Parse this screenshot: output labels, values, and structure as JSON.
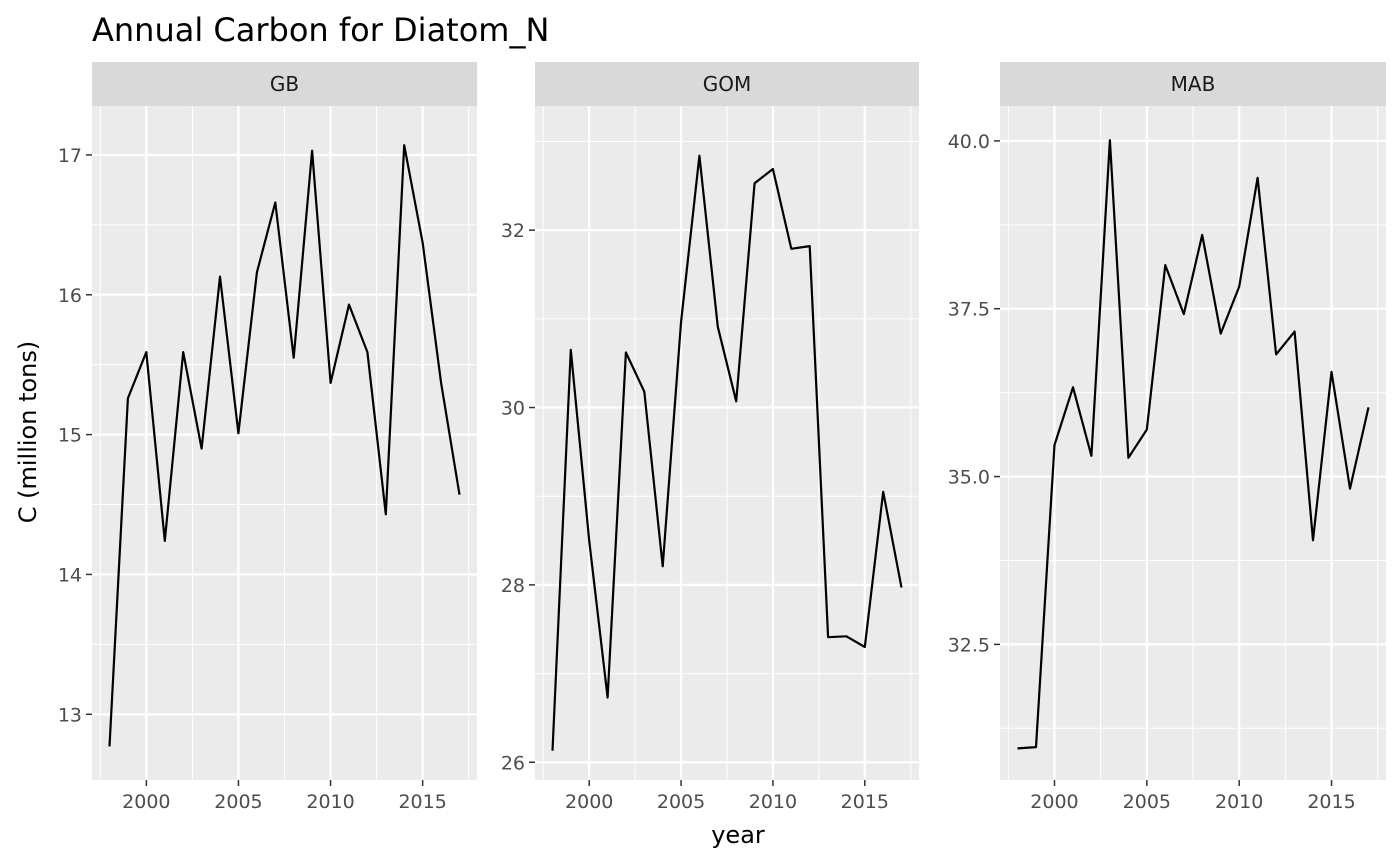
{
  "chart_data": {
    "type": "line",
    "title": "Annual Carbon for Diatom_N",
    "xlabel": "year",
    "ylabel": "C (million tons)",
    "x": [
      1998,
      1999,
      2000,
      2001,
      2002,
      2003,
      2004,
      2005,
      2006,
      2007,
      2008,
      2009,
      2010,
      2011,
      2012,
      2013,
      2014,
      2015,
      2016,
      2017
    ],
    "xticks": [
      2000,
      2005,
      2010,
      2015
    ],
    "xtick_labels": [
      "2000",
      "2005",
      "2010",
      "2015"
    ],
    "xlim": [
      1997.05,
      2017.95
    ],
    "grid": true,
    "panels": [
      {
        "name": "GB",
        "ylim": [
          12.53,
          17.35
        ],
        "yticks": [
          13,
          14,
          15,
          16,
          17
        ],
        "ytick_labels": [
          "13",
          "14",
          "15",
          "16",
          "17"
        ],
        "values": [
          12.77,
          15.26,
          15.59,
          14.24,
          15.59,
          14.9,
          16.13,
          15.01,
          16.16,
          16.66,
          15.55,
          17.03,
          15.37,
          15.93,
          15.59,
          14.43,
          17.07,
          16.37,
          15.37,
          14.57
        ]
      },
      {
        "name": "GOM",
        "ylim": [
          25.8,
          33.4
        ],
        "yticks": [
          26,
          28,
          30,
          32
        ],
        "ytick_labels": [
          "26",
          "28",
          "30",
          "32"
        ],
        "values": [
          26.13,
          30.65,
          28.5,
          26.73,
          30.62,
          30.18,
          28.21,
          30.97,
          32.84,
          30.91,
          30.07,
          32.53,
          32.69,
          31.79,
          31.82,
          27.41,
          27.42,
          27.3,
          29.05,
          27.97
        ]
      },
      {
        "name": "MAB",
        "ylim": [
          30.48,
          40.52
        ],
        "yticks": [
          32.5,
          35.0,
          37.5,
          40.0
        ],
        "ytick_labels": [
          "32.5",
          "35.0",
          "37.5",
          "40.0"
        ],
        "values": [
          30.95,
          30.97,
          35.47,
          36.33,
          35.31,
          40.01,
          35.28,
          35.7,
          38.15,
          37.42,
          38.6,
          37.13,
          37.83,
          39.45,
          36.82,
          37.16,
          34.05,
          36.56,
          34.82,
          36.03
        ]
      }
    ]
  }
}
